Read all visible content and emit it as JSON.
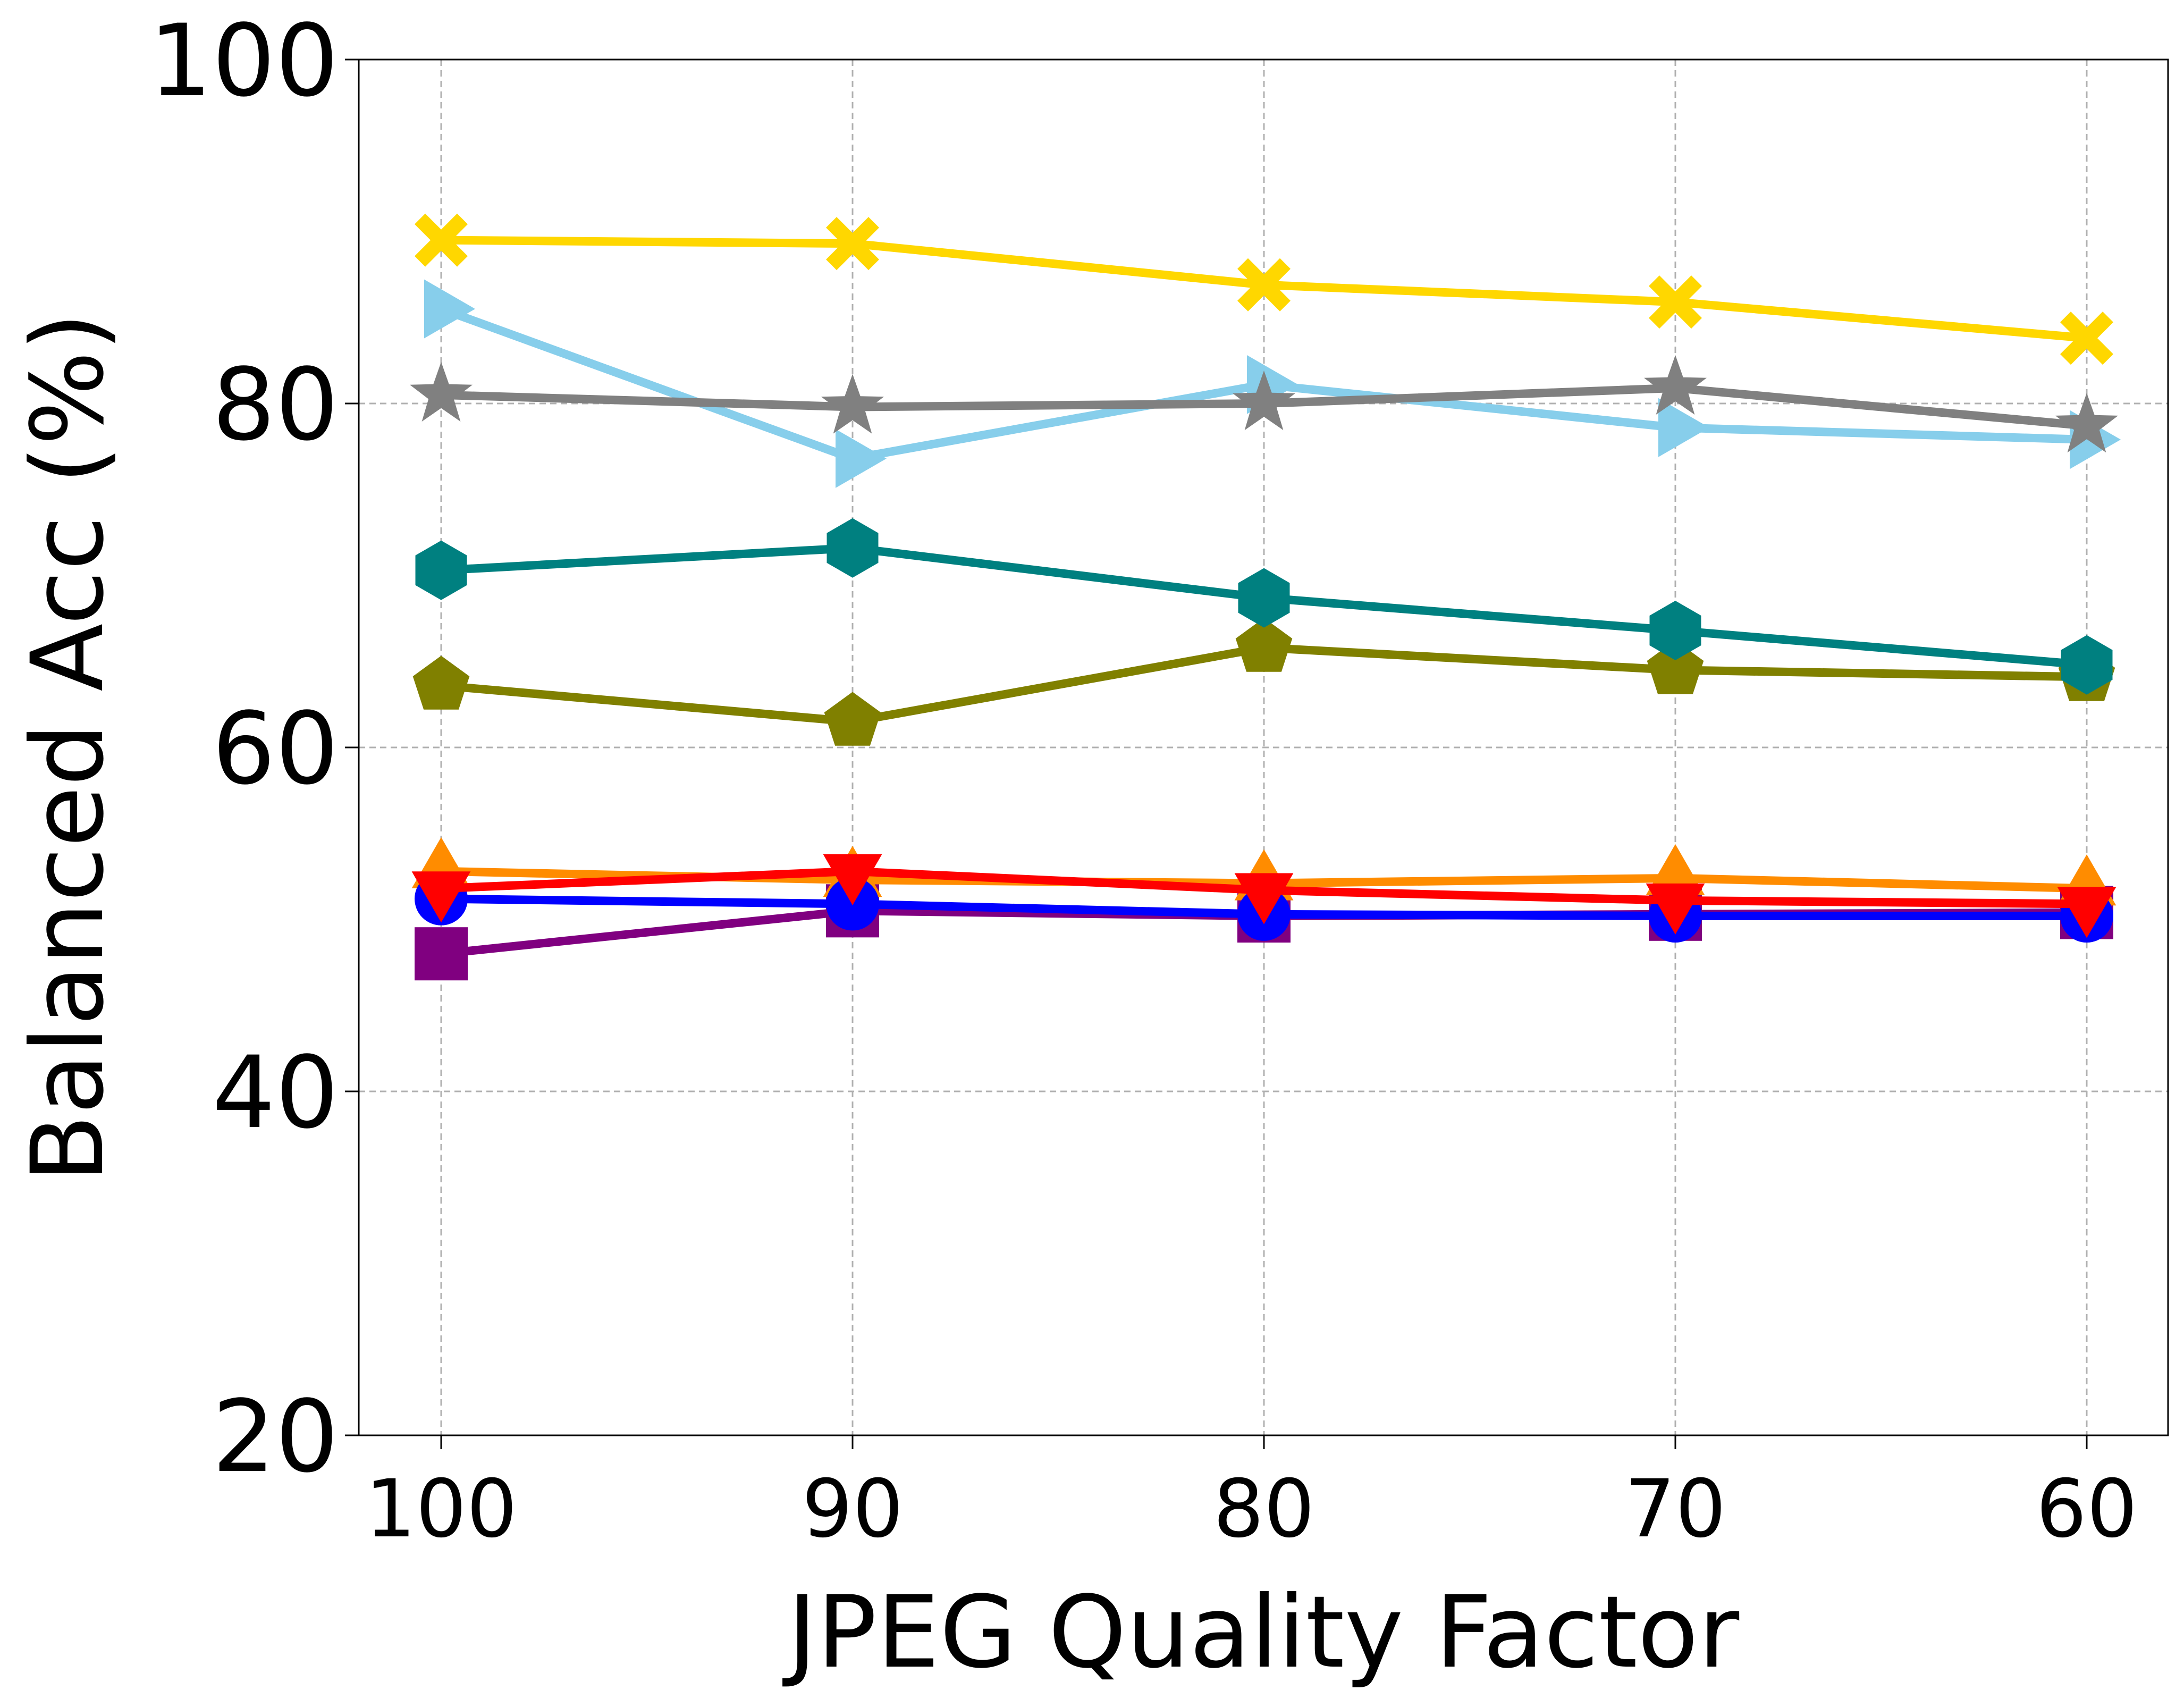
{
  "chart_data": {
    "type": "line",
    "title": "",
    "xlabel": "JPEG Quality Factor",
    "ylabel": "Balanced Acc (%)",
    "categories": [
      "100",
      "90",
      "80",
      "70",
      "60"
    ],
    "ylim": [
      20,
      100
    ],
    "yticks": [
      20,
      40,
      60,
      80,
      100
    ],
    "grid": true,
    "legend": "none",
    "series": [
      {
        "name": "purple-square",
        "color": "#800080",
        "marker": "square",
        "values": [
          48.0,
          50.5,
          50.2,
          50.3,
          50.4
        ]
      },
      {
        "name": "orange-triangle-up",
        "color": "#ff8c00",
        "marker": "triangle-up",
        "values": [
          52.8,
          52.3,
          52.1,
          52.4,
          51.8
        ]
      },
      {
        "name": "blue-circle",
        "color": "#0000ff",
        "marker": "circle",
        "values": [
          51.2,
          50.9,
          50.3,
          50.2,
          50.2
        ]
      },
      {
        "name": "red-triangle-down",
        "color": "#ff0000",
        "marker": "triangle-down",
        "values": [
          51.8,
          52.8,
          51.7,
          51.1,
          50.9
        ]
      },
      {
        "name": "olive-pentagon",
        "color": "#808000",
        "marker": "pentagon",
        "values": [
          63.6,
          61.5,
          65.8,
          64.5,
          64.1
        ]
      },
      {
        "name": "teal-hexagon",
        "color": "#008080",
        "marker": "hexagon",
        "values": [
          70.3,
          71.6,
          68.7,
          66.8,
          64.8
        ]
      },
      {
        "name": "skyblue-triangle-right",
        "color": "#87ceeb",
        "marker": "triangle-right",
        "values": [
          85.5,
          76.8,
          81.1,
          78.6,
          77.9
        ]
      },
      {
        "name": "gray-star",
        "color": "#808080",
        "marker": "star",
        "values": [
          80.5,
          79.8,
          80.0,
          80.9,
          78.7
        ]
      },
      {
        "name": "gold-x",
        "color": "#ffd700",
        "marker": "x",
        "values": [
          89.5,
          89.3,
          86.9,
          85.9,
          83.8
        ]
      }
    ]
  }
}
